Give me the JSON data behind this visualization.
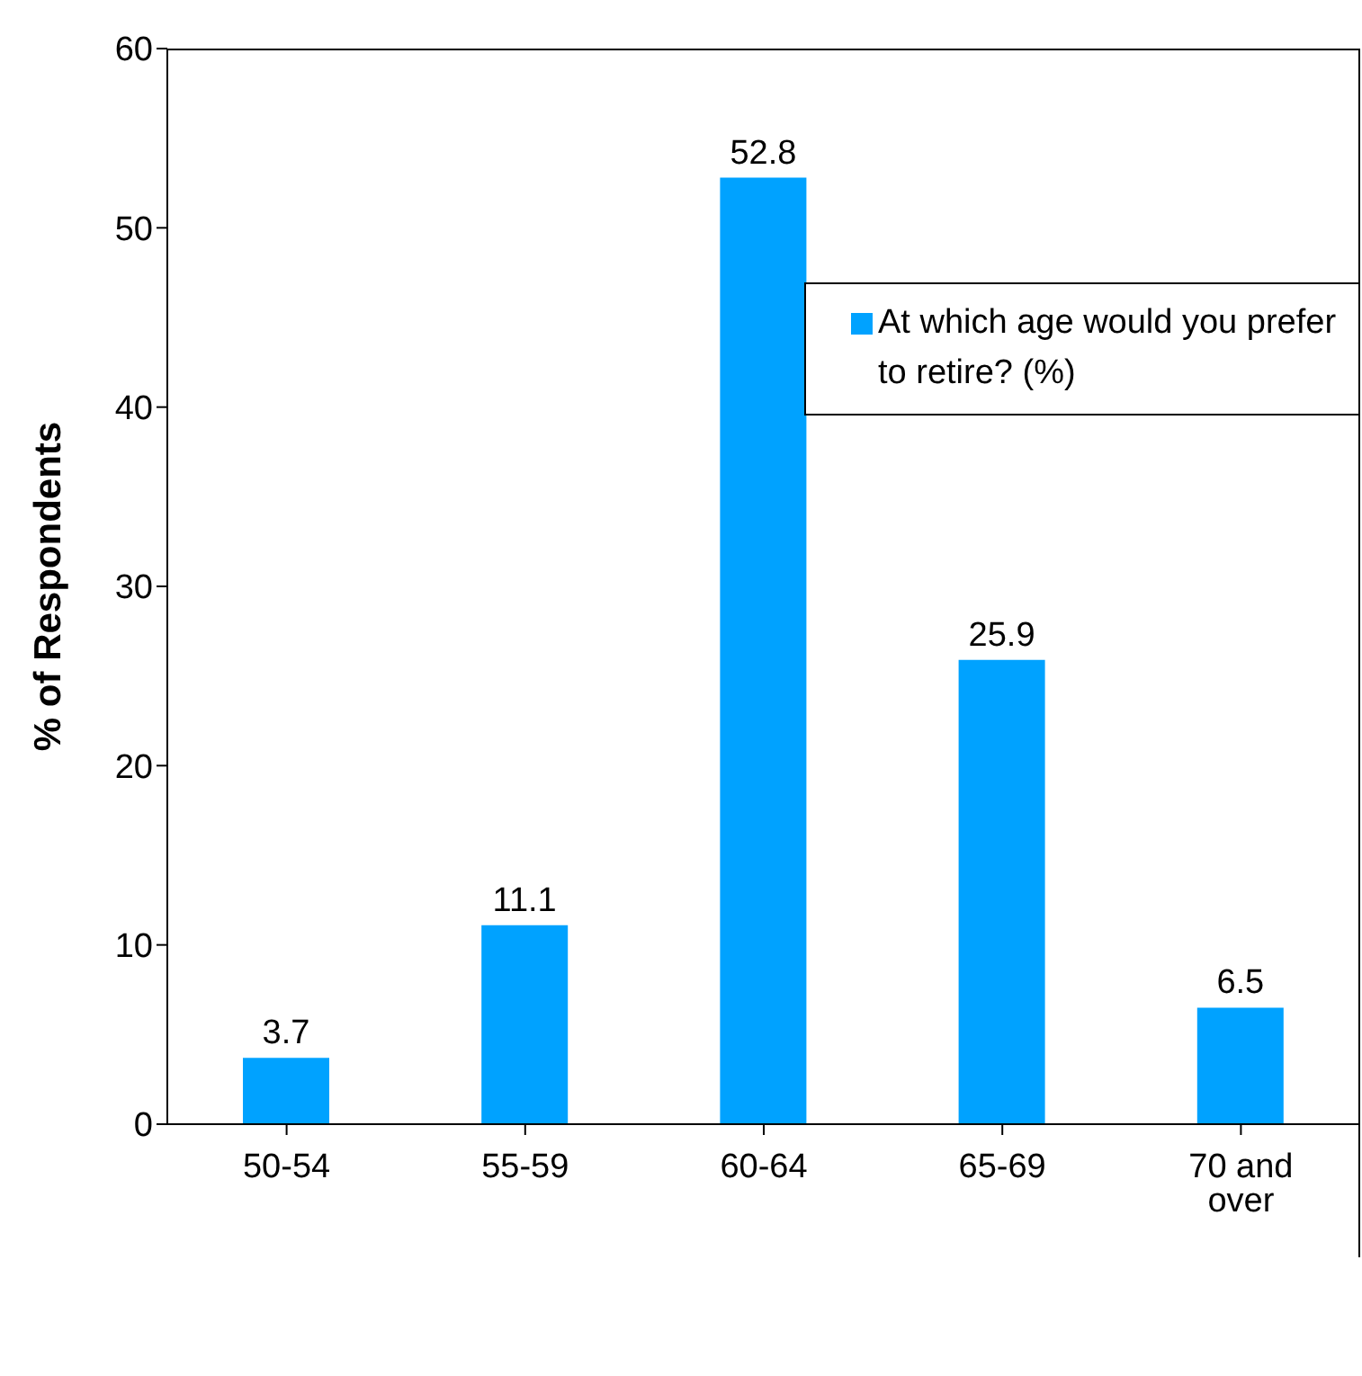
{
  "chart_data": {
    "type": "bar",
    "ylabel": "% of Respondents",
    "categories": [
      "50-54",
      "55-59",
      "60-64",
      "65-69",
      "70 and over"
    ],
    "series": [
      {
        "name": "At which age would you prefer to retire? (%)",
        "color": "#00a2ff",
        "values": [
          3.7,
          11.1,
          52.8,
          25.9,
          6.5
        ]
      }
    ],
    "ylim": [
      0,
      60
    ],
    "yticks": [
      0,
      10,
      20,
      30,
      40,
      50,
      60
    ],
    "legend": "top right",
    "data_labels": true
  }
}
